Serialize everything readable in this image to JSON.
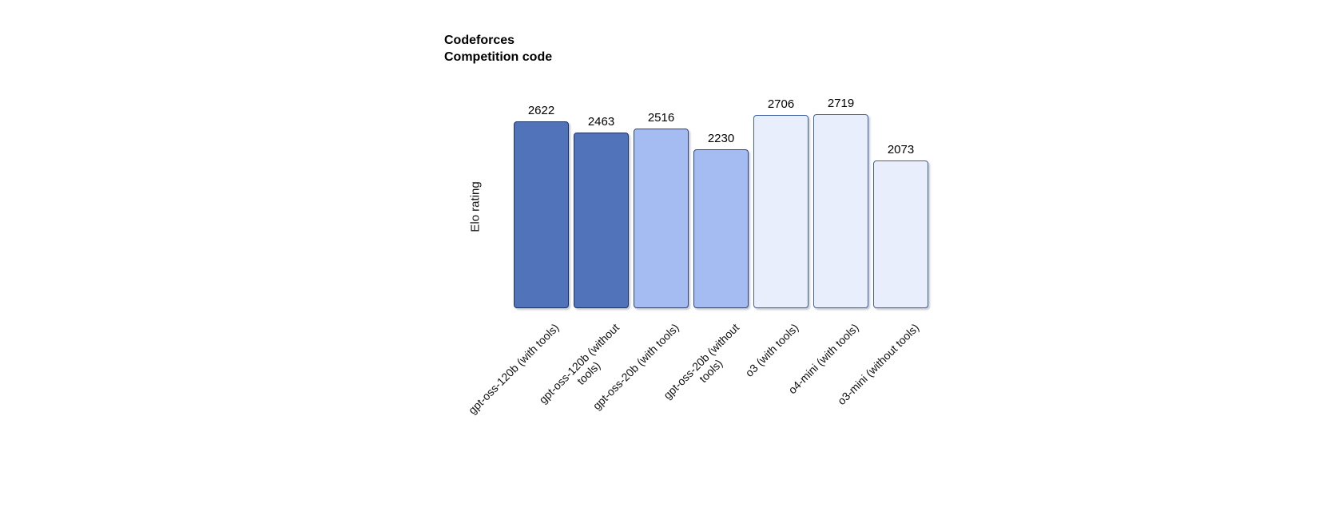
{
  "chart_data": {
    "type": "bar",
    "title": "Codeforces Competition code",
    "title_lines": [
      "Codeforces",
      "Competition code"
    ],
    "ylabel": "Elo rating",
    "xlabel": "",
    "grid": false,
    "legend": false,
    "value_labels_shown": true,
    "x_tick_rotation_deg": 45,
    "categories": [
      "gpt-oss-120b (with tools)",
      "gpt-oss-120b (without\ntools)",
      "gpt-oss-20b (with tools)",
      "gpt-oss-20b (without\ntools)",
      "o3 (with tools)",
      "o4-mini (with tools)",
      "o3-mini (without tools)"
    ],
    "values": [
      2622,
      2463,
      2516,
      2230,
      2706,
      2719,
      2073
    ],
    "groups": [
      "gpt-oss-120b",
      "gpt-oss-120b",
      "gpt-oss-20b",
      "gpt-oss-20b",
      "o-series",
      "o-series",
      "o-series"
    ],
    "colors": {
      "gpt-oss-120b": {
        "fill": "#5173ba",
        "stroke": "#1d3366"
      },
      "gpt-oss-20b": {
        "fill": "#a5bcf3",
        "stroke": "#2f4479"
      },
      "o-series": {
        "fill": "#e8eefb",
        "stroke": "#41619f"
      }
    }
  }
}
